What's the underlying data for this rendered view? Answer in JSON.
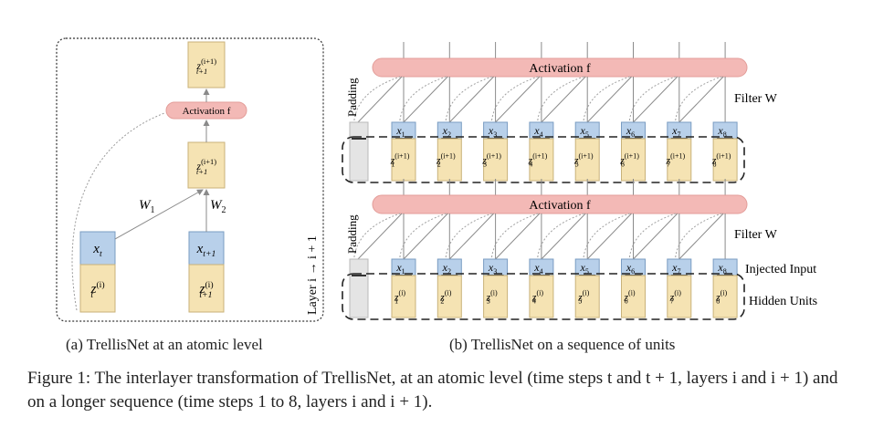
{
  "panel_a": {
    "activation_label": "Activation f",
    "weight_1": "W1",
    "weight_2": "W2",
    "layer_label": "Layer i → i + 1",
    "top_output": "z(i+1) t+1",
    "mid_output": "z(i+1) t+1",
    "input_t": "x t",
    "input_t1": "x t+1",
    "hidden_t": "z(i) t",
    "hidden_t1": "z(i) t+1",
    "caption": "(a) TrellisNet at an atomic level"
  },
  "panel_b": {
    "activation_label": "Activation f",
    "filter_label": "Filter W",
    "padding_label": "Padding",
    "injected_input_label": "Injected Input",
    "hidden_units_label": "Hidden Units",
    "time_steps": [
      "1",
      "2",
      "3",
      "4",
      "5",
      "6",
      "7",
      "8"
    ],
    "upper_hidden_superscript": "(i+1)",
    "lower_hidden_superscript": "(i)",
    "caption": "(b) TrellisNet on a sequence of units"
  },
  "figure_caption": "Figure 1: The interlayer transformation of TrellisNet, at an atomic level (time steps t and t + 1, layers i and i + 1) and on a longer sequence (time steps 1 to 8, layers i and i + 1).",
  "colors": {
    "input_fill": "#b8d0ea",
    "input_stroke": "#7a9cc2",
    "hidden_fill": "#f5e3b3",
    "hidden_stroke": "#c9b27a",
    "activation_fill": "#f3b9b6",
    "padding_fill": "#e4e4e4",
    "line": "#8a8a8a"
  }
}
